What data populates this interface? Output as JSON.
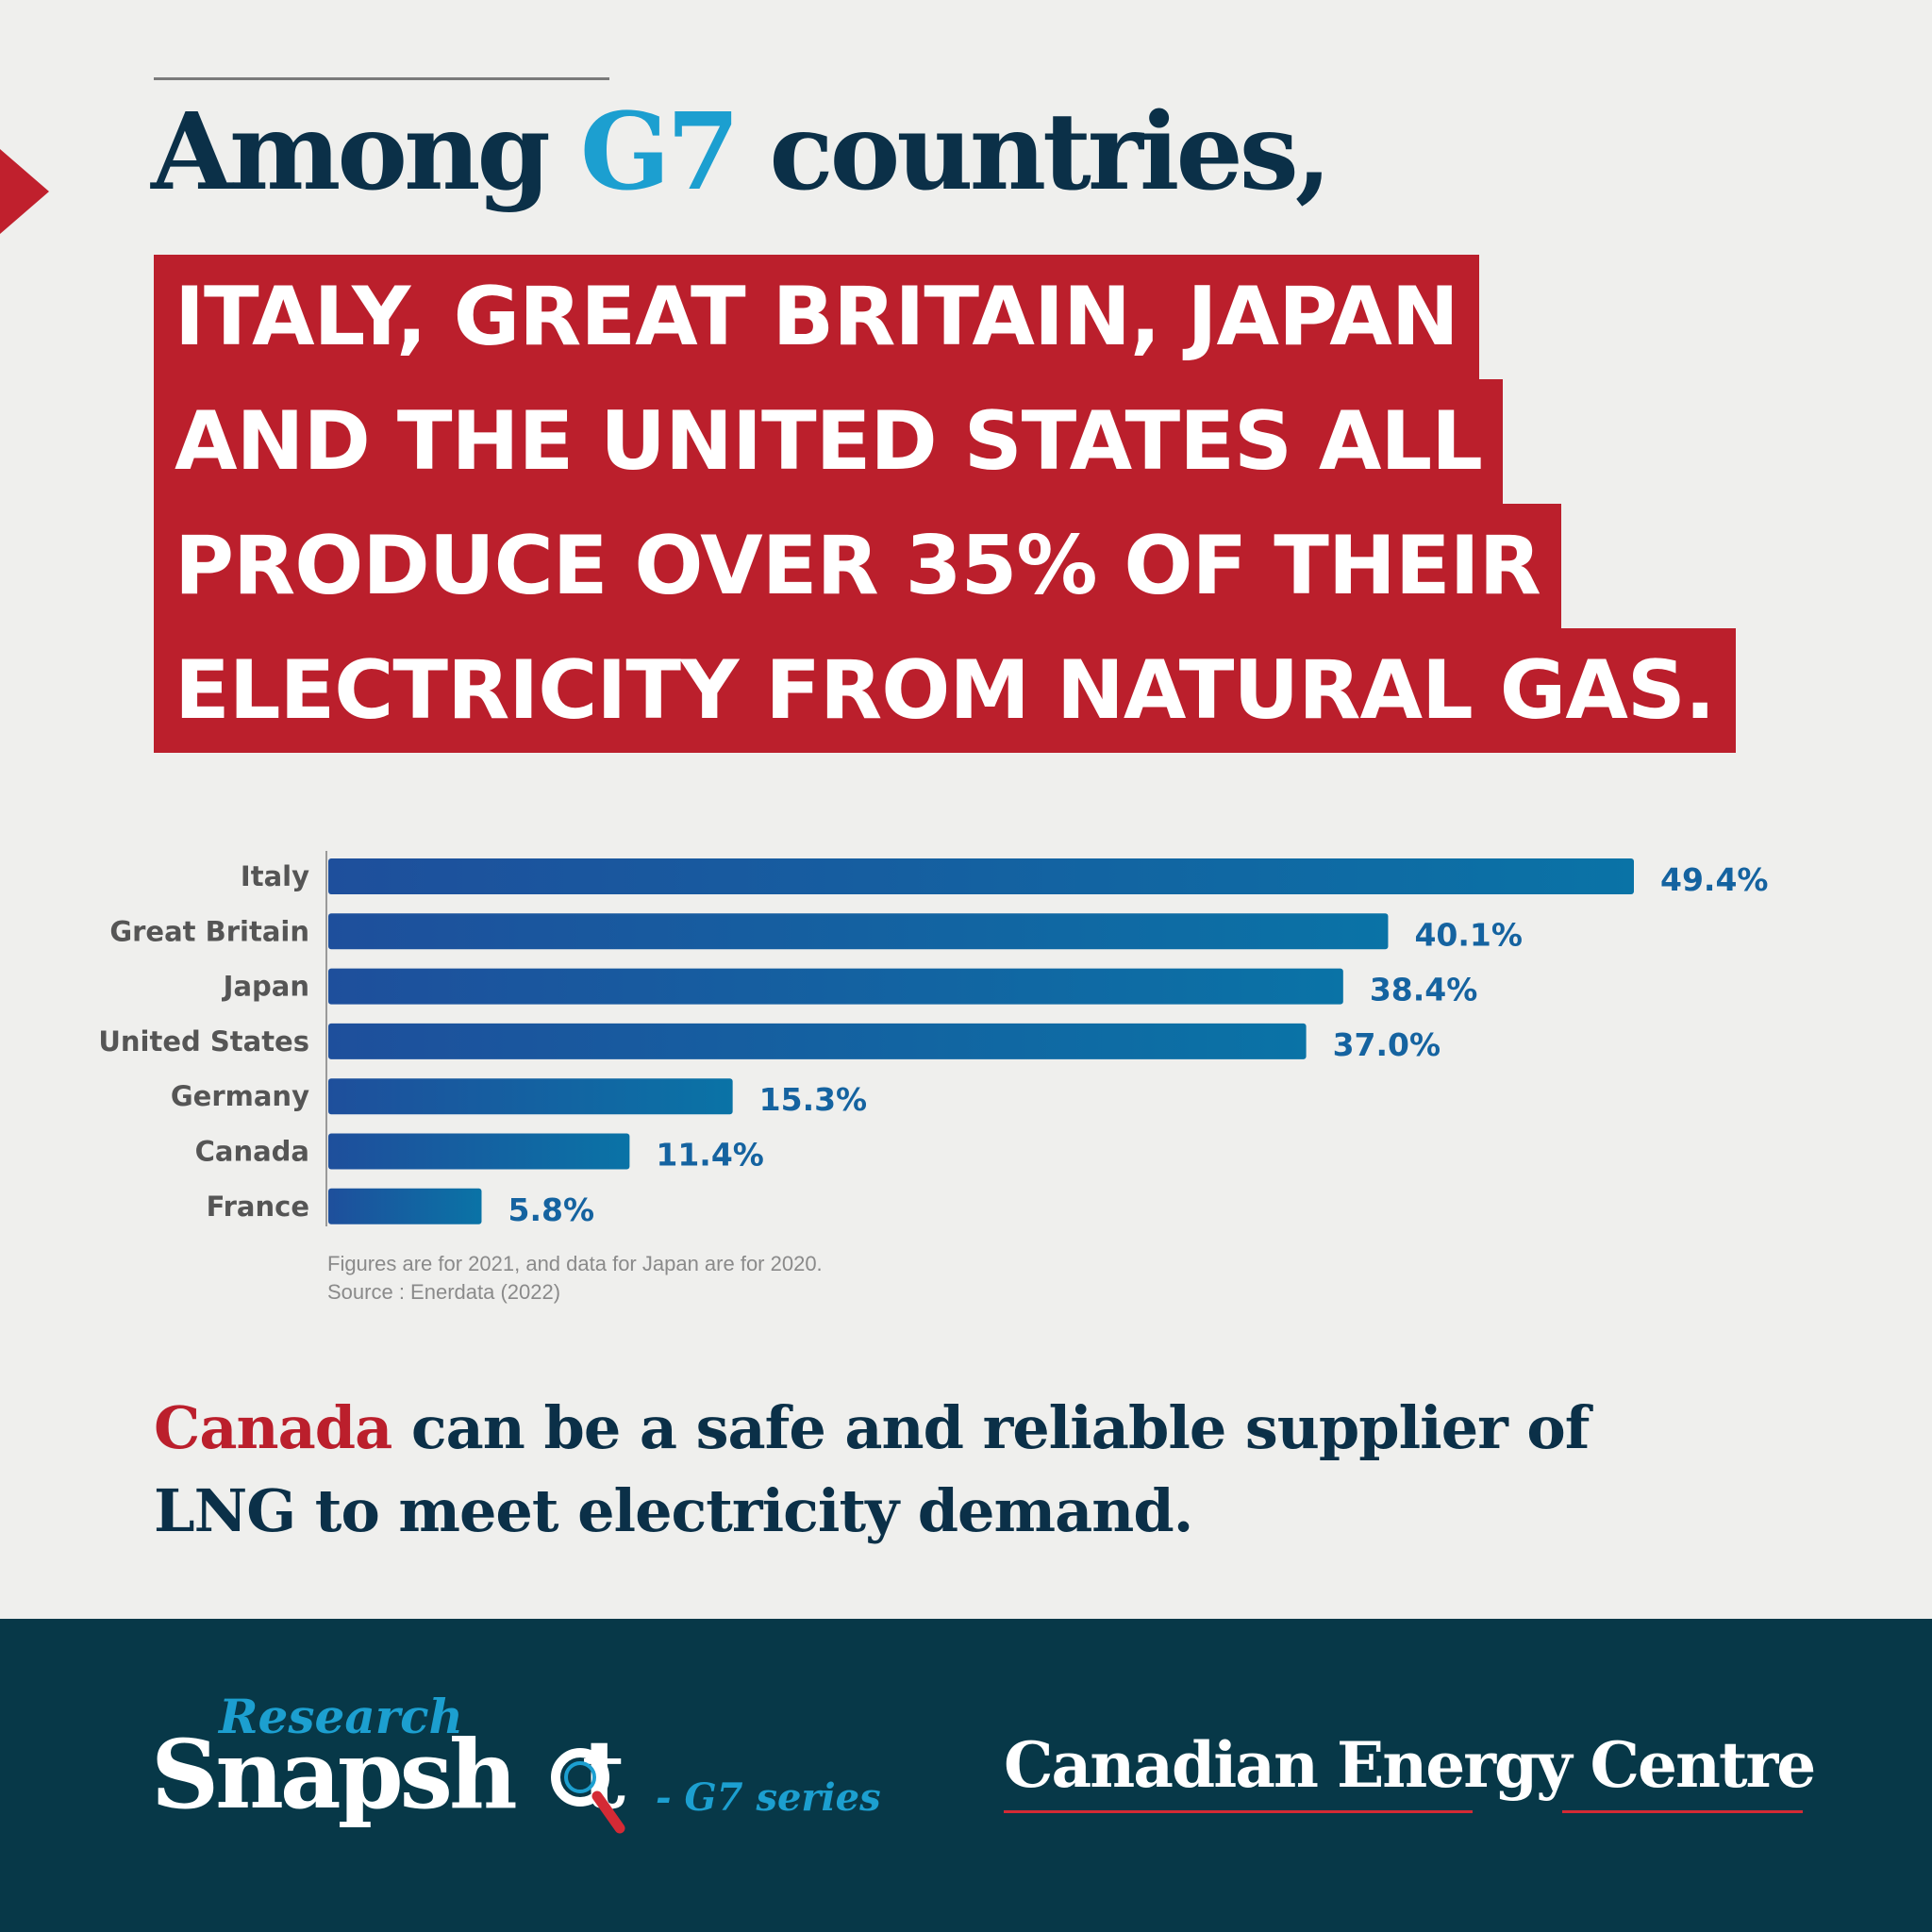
{
  "headline": {
    "before": "Among ",
    "accent": "G7",
    "after": " countries,"
  },
  "banner": {
    "lines": [
      "ITALY, GREAT BRITAIN, JAPAN",
      "AND THE UNITED STATES ALL",
      "PRODUCE OVER 35% OF THEIR",
      "ELECTRICITY FROM NATURAL GAS."
    ]
  },
  "chart_data": {
    "type": "bar",
    "orientation": "horizontal",
    "categories": [
      "Italy",
      "Great Britain",
      "Japan",
      "United States",
      "Germany",
      "Canada",
      "France"
    ],
    "values": [
      49.4,
      40.1,
      38.4,
      37.0,
      15.3,
      11.4,
      5.8
    ],
    "value_labels": [
      "49.4%",
      "40.1%",
      "38.4%",
      "37.0%",
      "15.3%",
      "11.4%",
      "5.8%"
    ],
    "xlim": [
      0,
      49.4
    ],
    "grid": false,
    "legend": "none",
    "colors": {
      "bar_start": "#1e4f9c",
      "bar_end": "#0a73a6",
      "label": "#1563a0",
      "category": "#555555"
    }
  },
  "notes": [
    "Figures are for 2021, and data for Japan are for 2020.",
    "Source : Enerdata (2022)"
  ],
  "closing": {
    "highlight": "Canada",
    "rest_line1": " can be a safe and reliable supplier of",
    "line2": "LNG to meet electricity demand."
  },
  "footer": {
    "research": "Research",
    "snapshot": "Snapsh",
    "snapshot_end": "t",
    "series": "- G7 series",
    "organization": "Canadian Energy Centre",
    "icon": "magnifier-icon"
  },
  "colors": {
    "navy": "#0b3048",
    "red": "#bb1f2c",
    "accent_blue": "#1c9fd0",
    "footer_bg": "#073848"
  }
}
